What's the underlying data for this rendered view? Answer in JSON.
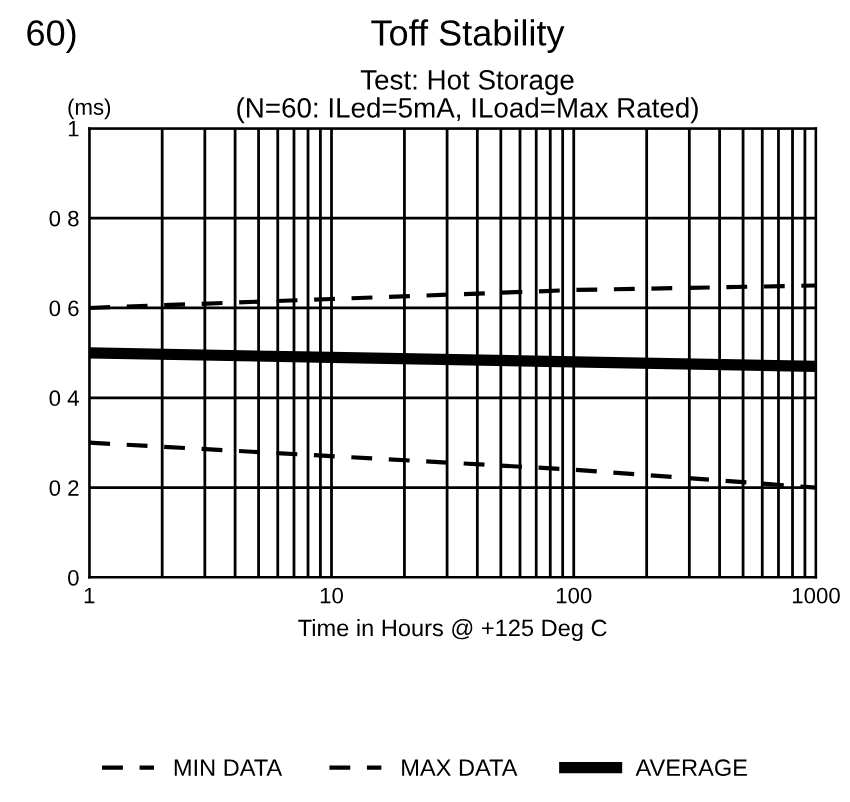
{
  "chart_data": {
    "type": "line",
    "title": "Toff Stability",
    "subtitle": "Test: Hot Storage\n(N=60: ILed=5mA, ILoad=Max Rated)",
    "ylabel": "(ms)",
    "xlabel": "Time in Hours @ +125 Deg C",
    "annotations": [
      "60)"
    ],
    "log": "x",
    "xlim": [
      1,
      1000
    ],
    "ylim": [
      0,
      1
    ],
    "xticks": [
      1,
      {
        "value": 2,
        "label": null
      },
      {
        "value": 3,
        "label": null
      },
      {
        "value": 4,
        "label": null
      },
      {
        "value": 5,
        "label": null
      },
      {
        "value": 6,
        "label": null
      },
      {
        "value": 7,
        "label": null
      },
      {
        "value": 8,
        "label": null
      },
      {
        "value": 9,
        "label": null
      },
      10,
      {
        "value": 20,
        "label": null
      },
      {
        "value": 30,
        "label": null
      },
      {
        "value": 40,
        "label": null
      },
      {
        "value": 50,
        "label": null
      },
      {
        "value": 60,
        "label": null
      },
      {
        "value": 70,
        "label": null
      },
      {
        "value": 80,
        "label": null
      },
      {
        "value": 90,
        "label": null
      },
      100,
      {
        "value": 200,
        "label": null
      },
      {
        "value": 300,
        "label": null
      },
      {
        "value": 400,
        "label": null
      },
      {
        "value": 500,
        "label": null
      },
      {
        "value": 600,
        "label": null
      },
      {
        "value": 700,
        "label": null
      },
      {
        "value": 800,
        "label": null
      },
      {
        "value": 900,
        "label": null
      },
      1000
    ],
    "yticks": [
      0,
      {
        "value": 0.2,
        "label": "0 2"
      },
      {
        "value": 0.4,
        "label": "0 4"
      },
      {
        "value": 0.6,
        "label": "0 6"
      },
      {
        "value": 0.8,
        "label": "0 8"
      },
      1
    ],
    "grid": true,
    "legend": "bottom",
    "x": [
      1,
      10,
      100,
      1000
    ],
    "series": [
      {
        "name": "MIN DATA",
        "color": "#000000",
        "line_style": "dashed",
        "values": [
          0.3,
          0.27,
          0.24,
          0.2
        ]
      },
      {
        "name": "MAX DATA",
        "color": "#000000",
        "line_style": "dashed",
        "values": [
          0.6,
          0.62,
          0.64,
          0.65
        ]
      },
      {
        "name": "AVERAGE",
        "color": "#000000",
        "line_style": "solid",
        "values": [
          0.5,
          0.49,
          0.48,
          0.47
        ]
      }
    ]
  }
}
